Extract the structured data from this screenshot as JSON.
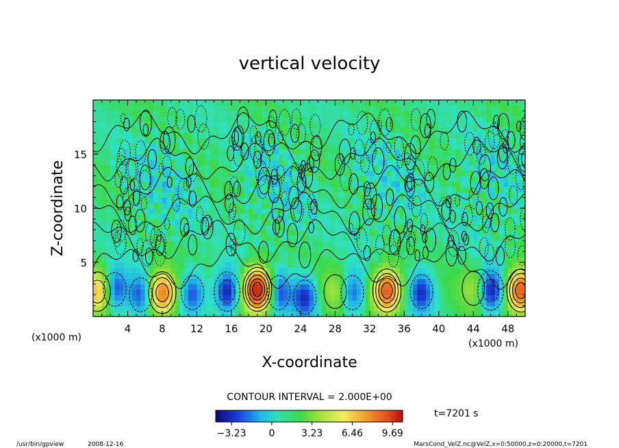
{
  "chart_data": {
    "type": "heatmap",
    "title": "vertical velocity",
    "xlabel": "X-coordinate",
    "ylabel": "Z-coordinate",
    "x_unit_left": "(x1000 m)",
    "x_unit_right": "(x1000 m)",
    "xlim": [
      0,
      50
    ],
    "ylim": [
      0,
      20
    ],
    "x_ticks": [
      4,
      8,
      12,
      16,
      20,
      24,
      28,
      32,
      36,
      40,
      44,
      48
    ],
    "y_ticks": [
      5,
      10,
      15
    ],
    "contour_interval_label": "CONTOUR INTERVAL = 2.000E+00",
    "colorbar": {
      "range": [
        -4.5,
        10.5
      ],
      "ticks": [
        -3.23,
        0,
        3.23,
        6.46,
        9.69
      ],
      "tick_labels": [
        "−3.23",
        "0",
        "3.23",
        "6.46",
        "9.69"
      ]
    },
    "time_label": "t=7201 s",
    "features": [
      {
        "kind": "updraft",
        "x": 0.5,
        "z": 2.3,
        "peak": 5.0
      },
      {
        "kind": "updraft",
        "x": 8.0,
        "z": 2.2,
        "peak": 7.0
      },
      {
        "kind": "updraft",
        "x": 19.0,
        "z": 2.5,
        "peak": 10.0
      },
      {
        "kind": "updraft",
        "x": 28.0,
        "z": 2.3,
        "peak": 2.0
      },
      {
        "kind": "updraft",
        "x": 34.0,
        "z": 2.4,
        "peak": 8.0
      },
      {
        "kind": "updraft",
        "x": 44.0,
        "z": 2.6,
        "peak": 2.0
      },
      {
        "kind": "updraft",
        "x": 49.5,
        "z": 2.4,
        "peak": 8.0
      },
      {
        "kind": "downdraft",
        "x": 2.5,
        "z": 2.5,
        "peak": -3.5
      },
      {
        "kind": "downdraft",
        "x": 5.5,
        "z": 2.0,
        "peak": -3.0
      },
      {
        "kind": "downdraft",
        "x": 11.5,
        "z": 2.2,
        "peak": -3.0
      },
      {
        "kind": "downdraft",
        "x": 15.5,
        "z": 2.3,
        "peak": -4.0
      },
      {
        "kind": "downdraft",
        "x": 21.5,
        "z": 2.2,
        "peak": -3.0
      },
      {
        "kind": "downdraft",
        "x": 24.5,
        "z": 1.8,
        "peak": -3.5
      },
      {
        "kind": "downdraft",
        "x": 30.0,
        "z": 2.2,
        "peak": -3.0
      },
      {
        "kind": "downdraft",
        "x": 38.0,
        "z": 2.3,
        "peak": -3.5
      },
      {
        "kind": "downdraft",
        "x": 46.0,
        "z": 2.4,
        "peak": -4.0
      }
    ]
  },
  "footer": {
    "program": "/usr/bin/gpview",
    "date": "2008-12-16",
    "source": "MarsCond_VelZ.nc@VelZ,x=0:50000,z=0:20000,t=7201"
  }
}
